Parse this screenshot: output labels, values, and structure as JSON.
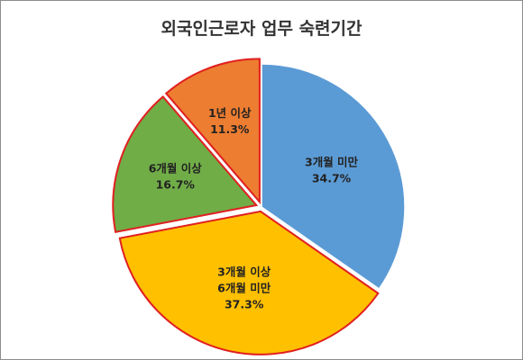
{
  "chart_data": {
    "type": "pie",
    "title": "외국인근로자 업무 숙련기간",
    "slices": [
      {
        "label_lines": [
          "3개월 미만"
        ],
        "value_label": "34.7%",
        "value": 34.7,
        "color": "#5B9BD5",
        "stroke": "#ffffff"
      },
      {
        "label_lines": [
          "3개월 이상",
          "6개월 미만"
        ],
        "value_label": "37.3%",
        "value": 37.3,
        "color": "#FFC000",
        "stroke": "#e02020"
      },
      {
        "label_lines": [
          "6개월 이상"
        ],
        "value_label": "16.7%",
        "value": 16.7,
        "color": "#70AD47",
        "stroke": "#e02020"
      },
      {
        "label_lines": [
          "1년 이상"
        ],
        "value_label": "11.3%",
        "value": 11.3,
        "color": "#ED7D31",
        "stroke": "#e02020"
      }
    ]
  }
}
